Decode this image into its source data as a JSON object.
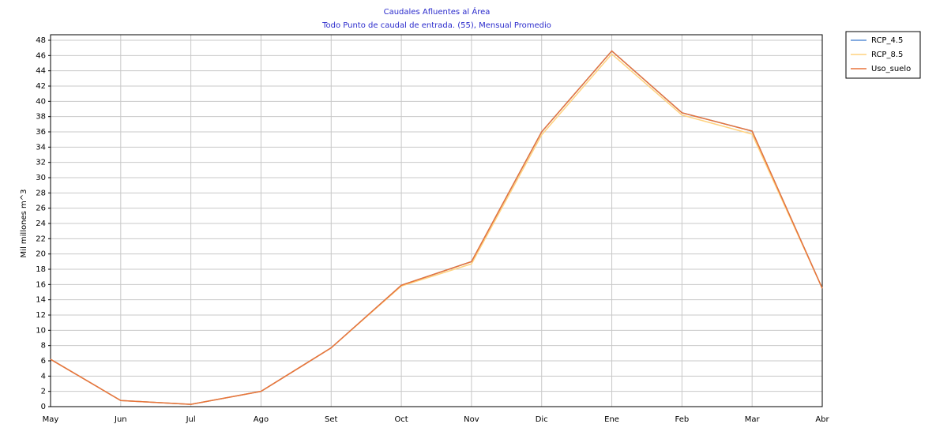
{
  "chart_data": {
    "type": "line",
    "title": "Caudales Afluentes al Área",
    "subtitle": "Todo Punto de caudal de entrada. (55), Mensual Promedio",
    "y_label": "Mil millones m^3",
    "categories": [
      "May",
      "Jun",
      "Jul",
      "Ago",
      "Set",
      "Oct",
      "Nov",
      "Dic",
      "Ene",
      "Feb",
      "Mar",
      "Abr"
    ],
    "series": [
      {
        "name": "RCP_4.5",
        "color": "#5b8fd6",
        "values": [
          6.2,
          0.8,
          0.3,
          2.0,
          7.7,
          15.9,
          19.0,
          36.0,
          46.6,
          38.5,
          36.1,
          15.5
        ]
      },
      {
        "name": "RCP_8.5",
        "color": "#ffd27f",
        "values": [
          6.2,
          0.8,
          0.3,
          2.0,
          7.7,
          15.8,
          18.7,
          35.6,
          46.2,
          38.2,
          35.7,
          15.5
        ]
      },
      {
        "name": "Uso_suelo",
        "color": "#e8743b",
        "values": [
          6.2,
          0.8,
          0.3,
          2.0,
          7.7,
          15.9,
          19.0,
          36.0,
          46.6,
          38.5,
          36.1,
          15.5
        ]
      }
    ],
    "ylim": [
      0,
      48
    ],
    "yticks": [
      0,
      2,
      4,
      6,
      8,
      10,
      12,
      14,
      16,
      18,
      20,
      22,
      24,
      26,
      28,
      30,
      32,
      34,
      36,
      38,
      40,
      42,
      44,
      46,
      48
    ],
    "grid": true,
    "legend": "outside-right"
  }
}
